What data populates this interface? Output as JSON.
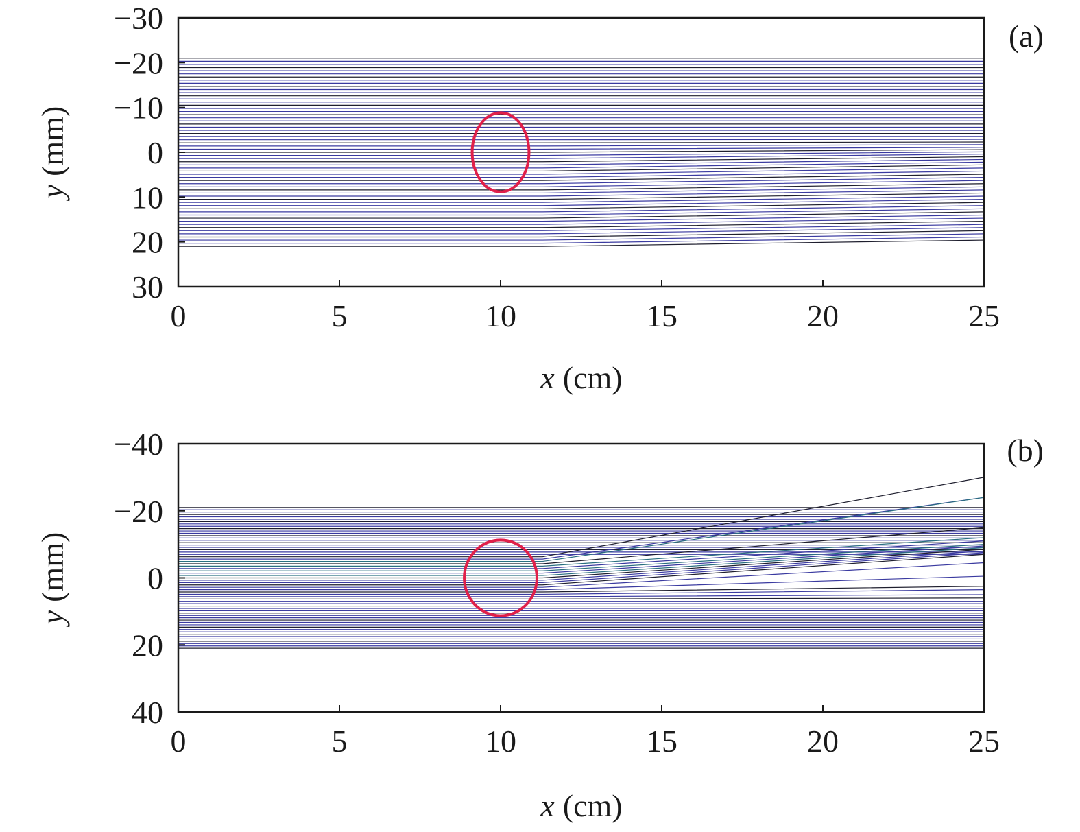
{
  "figure": {
    "colors": {
      "axis": "#1a1a1a",
      "trajectory_dark": "#1e1e2e",
      "trajectory_blue": "#3a3aa0",
      "trajectory_teal": "#2a6f80",
      "circle": "#e0204a"
    }
  },
  "chart_data": [
    {
      "type": "line",
      "panel_label": "(a)",
      "xlabel_var": "x",
      "xlabel_unit": "(cm)",
      "ylabel_var": "y",
      "ylabel_unit": "(mm)",
      "xlim": [
        0,
        25
      ],
      "ylim": [
        -30,
        30
      ],
      "y_inverted": true,
      "xticks": [
        0,
        5,
        10,
        15,
        20,
        25
      ],
      "yticks": [
        -30,
        -20,
        -10,
        0,
        10,
        20,
        30
      ],
      "xtick_labels": [
        "0",
        "5",
        "10",
        "15",
        "20",
        "25"
      ],
      "ytick_labels": [
        "−30",
        "−20",
        "−10",
        "0",
        "10",
        "20",
        "30"
      ],
      "grid": false,
      "circle": {
        "center_x": 10,
        "center_y": 0,
        "radius_mm": 9
      },
      "trajectories": {
        "count": 61,
        "y0_range": [
          -21,
          21
        ],
        "x_start": 0,
        "x_end": 25,
        "deflect_after_x": 11.3,
        "final_y_at_x25": [
          -21.0,
          -20.3,
          -19.6,
          -18.9,
          -18.2,
          -17.5,
          -16.8,
          -16.1,
          -15.4,
          -14.7,
          -14.0,
          -13.3,
          -12.6,
          -11.9,
          -11.2,
          -10.5,
          -9.8,
          -9.1,
          -8.4,
          -7.7,
          -7.0,
          -6.3,
          -5.6,
          -4.9,
          -4.2,
          -3.5,
          -2.9,
          -2.3,
          -1.7,
          -1.1,
          -0.6,
          -0.1,
          0.4,
          1.0,
          1.6,
          2.2,
          2.8,
          3.5,
          4.2,
          4.9,
          5.6,
          6.3,
          7.0,
          7.7,
          8.4,
          9.1,
          9.8,
          10.5,
          11.2,
          11.9,
          12.6,
          13.3,
          14.0,
          14.7,
          15.4,
          16.1,
          16.8,
          17.5,
          18.2,
          18.9,
          19.6
        ]
      }
    },
    {
      "type": "line",
      "panel_label": "(b)",
      "xlabel_var": "x",
      "xlabel_unit": "(cm)",
      "ylabel_var": "y",
      "ylabel_unit": "(mm)",
      "xlim": [
        0,
        25
      ],
      "ylim": [
        -40,
        40
      ],
      "y_inverted": true,
      "xticks": [
        0,
        5,
        10,
        15,
        20,
        25
      ],
      "yticks": [
        -40,
        -20,
        0,
        20,
        40
      ],
      "xtick_labels": [
        "0",
        "5",
        "10",
        "15",
        "20",
        "25"
      ],
      "ytick_labels": [
        "−40",
        "−20",
        "0",
        "20",
        "40"
      ],
      "grid": false,
      "circle": {
        "center_x": 10,
        "center_y": 0,
        "radius_mm": 11.5
      },
      "trajectories": {
        "count": 61,
        "y0_range": [
          -21,
          21
        ],
        "x_start": 0,
        "x_end": 25,
        "deflect_after_x": 11.3,
        "final_y_at_x25": [
          -21.0,
          -20.3,
          -19.6,
          -18.9,
          -18.2,
          -17.5,
          -16.8,
          -16.1,
          -15.4,
          -14.7,
          -14.0,
          -13.3,
          -12.6,
          -11.9,
          -11.2,
          -10.5,
          -9.8,
          -9.1,
          -8.4,
          -7.7,
          -7.0,
          -30.0,
          -24.0,
          -24.0,
          -15.0,
          -12.0,
          -11.0,
          -10.0,
          -9.5,
          -9.0,
          -8.5,
          -8.0,
          -7.5,
          -7.0,
          -4.5,
          -0.5,
          2.5,
          3.5,
          5.0,
          6.0,
          7.0,
          7.7,
          8.4,
          9.1,
          9.8,
          10.5,
          11.2,
          11.9,
          12.6,
          13.3,
          14.0,
          14.7,
          15.4,
          16.1,
          16.8,
          17.5,
          18.2,
          18.9,
          19.6,
          20.3,
          21.0
        ],
        "teal_indices": [
          23,
          25,
          27,
          29
        ]
      }
    }
  ]
}
